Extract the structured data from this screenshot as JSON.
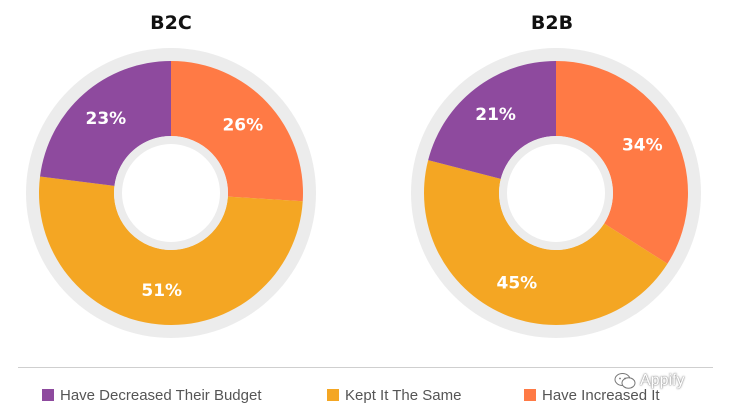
{
  "colors": {
    "decreased": "#8e4a9e",
    "kept": "#f4a623",
    "increased": "#ff7a45",
    "ring": "#ececec",
    "hole": "#ffffff"
  },
  "chart_data": [
    {
      "type": "pie",
      "title": "B2C",
      "categories": [
        "Have Decreased Their Budget",
        "Kept It The Same",
        "Have Increased It"
      ],
      "values": [
        23,
        51,
        26
      ],
      "labels": [
        "23%",
        "51%",
        "26%"
      ]
    },
    {
      "type": "pie",
      "title": "B2B",
      "categories": [
        "Have Decreased Their Budget",
        "Kept It The Same",
        "Have Increased It"
      ],
      "values": [
        21,
        45,
        34
      ],
      "labels": [
        "21%",
        "45%",
        "34%"
      ]
    }
  ],
  "legend": [
    {
      "label": "Have Decreased Their Budget",
      "color": "#8e4a9e"
    },
    {
      "label": "Kept It The Same",
      "color": "#f4a623"
    },
    {
      "label": "Have Increased It",
      "color": "#ff7a45"
    }
  ],
  "watermark": {
    "text": "Appify",
    "icon": "wechat-icon"
  }
}
